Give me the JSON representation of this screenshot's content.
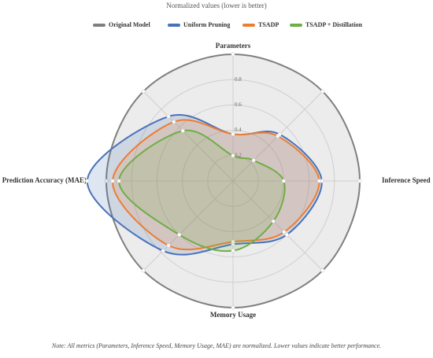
{
  "chart_data": {
    "type": "radar",
    "title": "Normalized values (lower is better)",
    "categories": [
      "Parameters",
      null,
      "Inference Speed",
      null,
      "Memory Usage",
      null,
      "Prediction Accuracy (MAE)",
      null
    ],
    "series": [
      {
        "name": "Original Model",
        "color": "#7f7f7f",
        "values": [
          1.0,
          1.0,
          1.0,
          1.0,
          1.0,
          1.0,
          1.0,
          1.0
        ]
      },
      {
        "name": "Uniform Pruning",
        "color": "#4a72b8",
        "values": [
          0.37,
          0.52,
          0.7,
          0.6,
          0.5,
          0.78,
          1.15,
          0.72
        ]
      },
      {
        "name": "TSADP",
        "color": "#ed7d31",
        "values": [
          0.37,
          0.5,
          0.68,
          0.57,
          0.48,
          0.72,
          0.95,
          0.66
        ]
      },
      {
        "name": "TSADP + Distillation",
        "color": "#70ad47",
        "values": [
          0.2,
          0.23,
          0.4,
          0.45,
          0.55,
          0.6,
          0.9,
          0.56
        ]
      }
    ],
    "rlim": [
      0,
      1
    ],
    "rticks": [
      0.2,
      0.4,
      0.6,
      0.8
    ],
    "grid": true,
    "legend": "top",
    "note": "Note: All metrics (Parameters, Inference Speed, Memory Usage, MAE) are normalized. Lower values indicate better performance."
  }
}
